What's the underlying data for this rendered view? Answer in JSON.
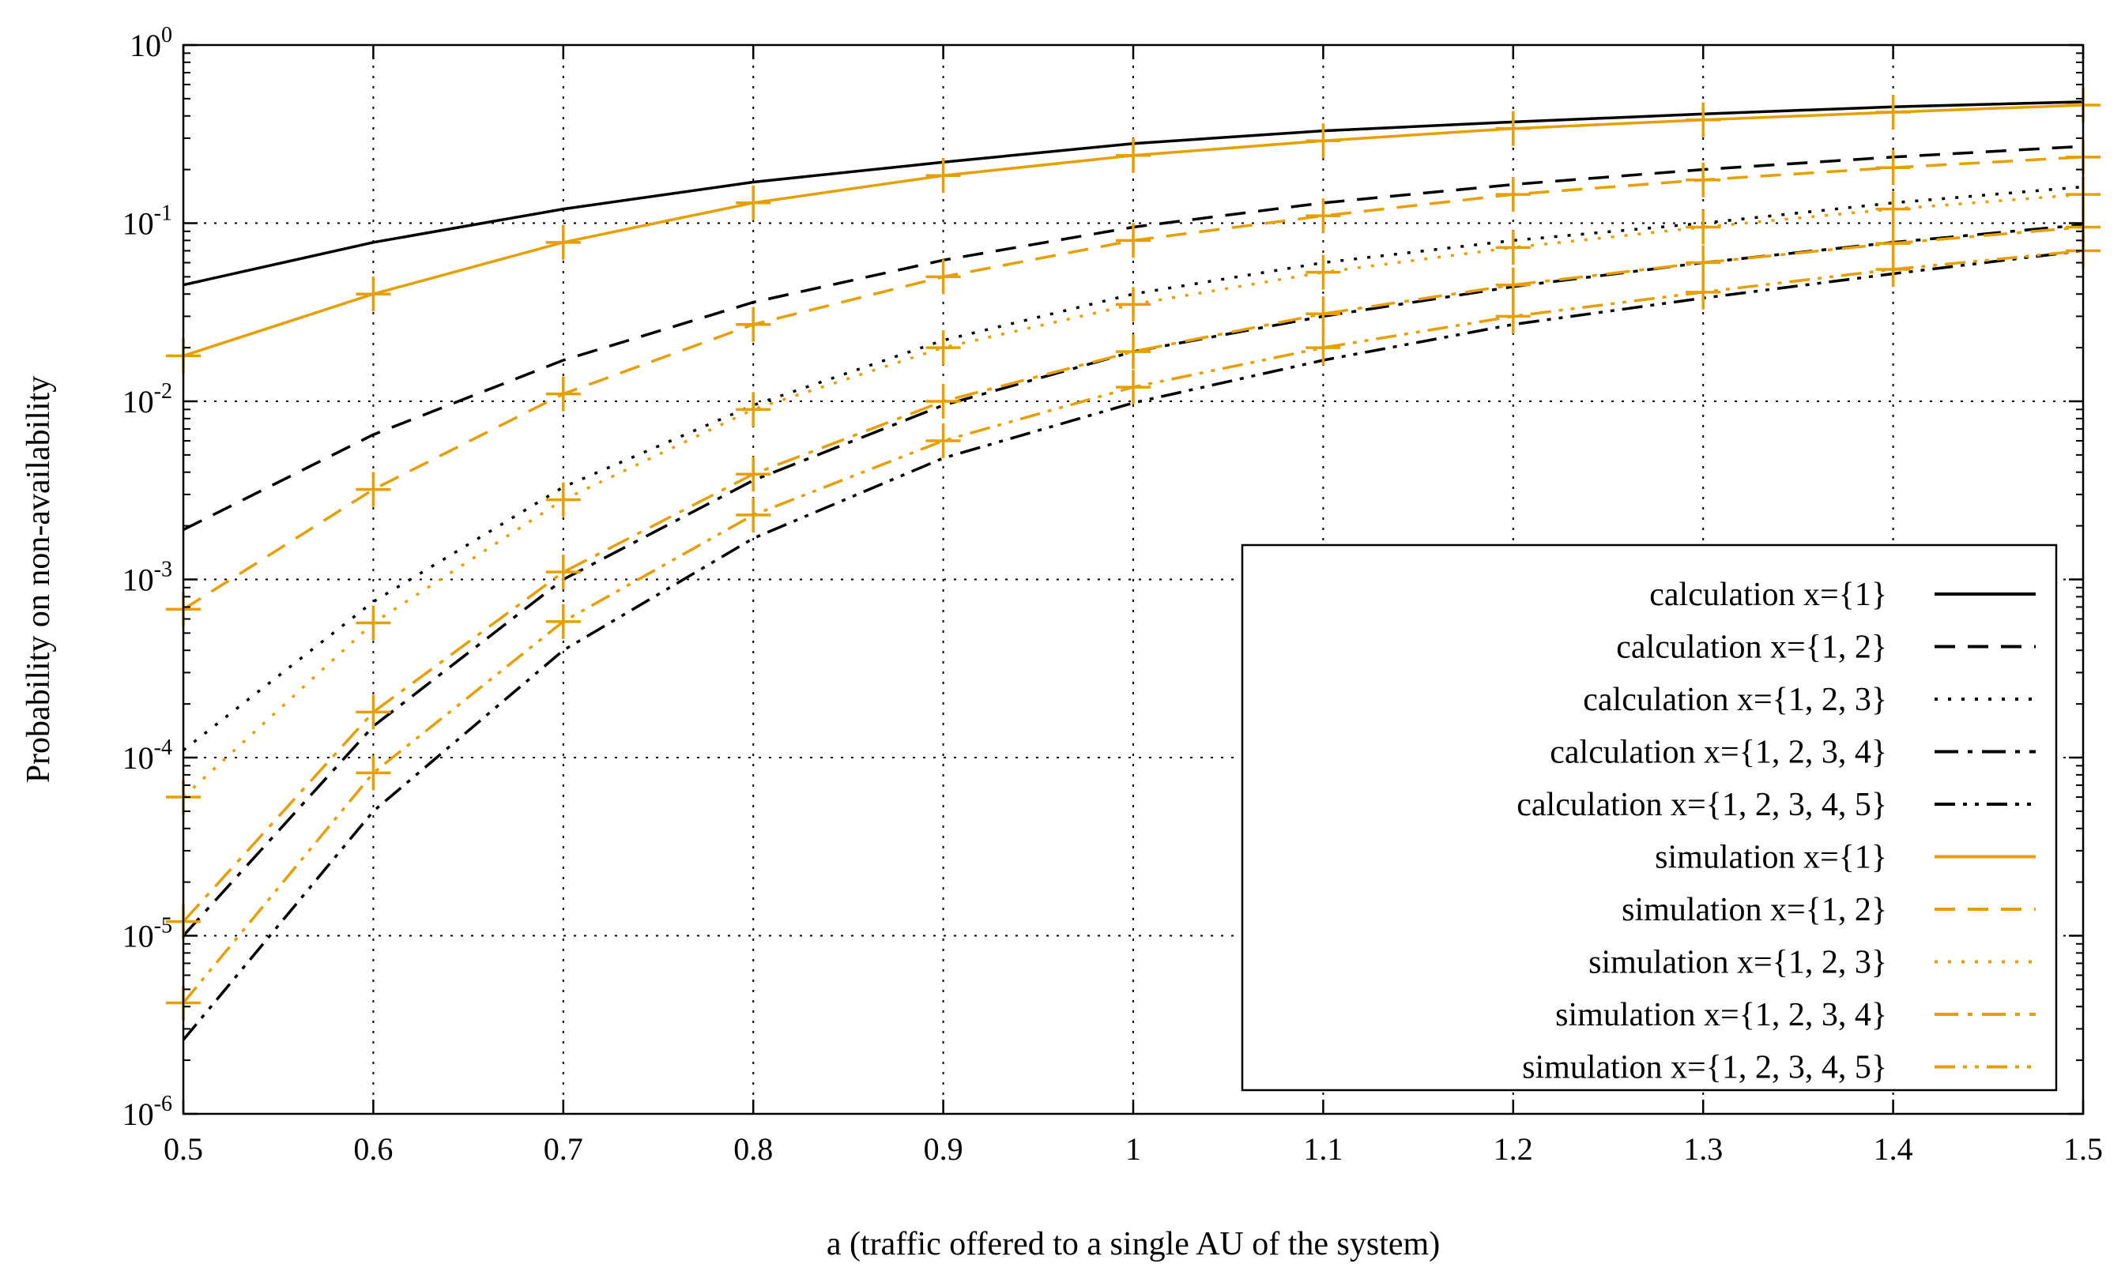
{
  "chart_data": {
    "type": "line",
    "title": "",
    "xlabel": "a (traffic offered to a single AU of the system)",
    "ylabel": "Probability on non-availability",
    "xlim": [
      0.5,
      1.5
    ],
    "ylim": [
      1e-06,
      1
    ],
    "yscale": "log",
    "grid": true,
    "legend_position": "bottom-right",
    "x": [
      0.5,
      0.6,
      0.7,
      0.8,
      0.9,
      1.0,
      1.1,
      1.2,
      1.3,
      1.4,
      1.5
    ],
    "x_tick_labels": [
      "0.5",
      "0.6",
      "0.7",
      "0.8",
      "0.9",
      "1",
      "1.1",
      "1.2",
      "1.3",
      "1.4",
      "1.5"
    ],
    "y_tick_labels": [
      {
        "base": "10",
        "exp": "-6"
      },
      {
        "base": "10",
        "exp": "-5"
      },
      {
        "base": "10",
        "exp": "-4"
      },
      {
        "base": "10",
        "exp": "-3"
      },
      {
        "base": "10",
        "exp": "-2"
      },
      {
        "base": "10",
        "exp": "-1"
      },
      {
        "base": "10",
        "exp": "0"
      }
    ],
    "colors": {
      "calculation": "#000000",
      "simulation": "#E69F00"
    },
    "series": [
      {
        "name": "calculation x={1}",
        "kind": "calculation",
        "dash": "solid",
        "values": [
          0.045,
          0.078,
          0.12,
          0.17,
          0.22,
          0.28,
          0.33,
          0.37,
          0.41,
          0.45,
          0.48
        ]
      },
      {
        "name": "calculation x={1, 2}",
        "kind": "calculation",
        "dash": "dash",
        "values": [
          0.0019,
          0.0065,
          0.017,
          0.036,
          0.062,
          0.095,
          0.13,
          0.165,
          0.2,
          0.235,
          0.27
        ]
      },
      {
        "name": "calculation x={1, 2, 3}",
        "kind": "calculation",
        "dash": "dot",
        "values": [
          0.00011,
          0.00075,
          0.0033,
          0.0095,
          0.022,
          0.04,
          0.06,
          0.08,
          0.1,
          0.13,
          0.16
        ]
      },
      {
        "name": "calculation x={1, 2, 3, 4}",
        "kind": "calculation",
        "dash": "dashdot",
        "values": [
          1e-05,
          0.00015,
          0.001,
          0.0036,
          0.0095,
          0.019,
          0.03,
          0.044,
          0.06,
          0.078,
          0.098
        ]
      },
      {
        "name": "calculation x={1, 2, 3, 4, 5}",
        "kind": "calculation",
        "dash": "dashdotdot",
        "values": [
          2.6e-06,
          5e-05,
          0.0004,
          0.0017,
          0.0048,
          0.0098,
          0.017,
          0.027,
          0.038,
          0.052,
          0.07
        ]
      },
      {
        "name": "simulation x={1}",
        "kind": "simulation",
        "dash": "solid",
        "values": [
          0.018,
          0.04,
          0.078,
          0.13,
          0.185,
          0.24,
          0.29,
          0.34,
          0.38,
          0.42,
          0.46
        ]
      },
      {
        "name": "simulation x={1, 2}",
        "kind": "simulation",
        "dash": "dash",
        "values": [
          0.00068,
          0.0032,
          0.011,
          0.027,
          0.05,
          0.08,
          0.11,
          0.145,
          0.175,
          0.205,
          0.235
        ]
      },
      {
        "name": "simulation x={1, 2, 3}",
        "kind": "simulation",
        "dash": "dot",
        "values": [
          6e-05,
          0.00057,
          0.0028,
          0.009,
          0.02,
          0.035,
          0.053,
          0.073,
          0.095,
          0.12,
          0.145
        ]
      },
      {
        "name": "simulation x={1, 2, 3, 4}",
        "kind": "simulation",
        "dash": "dashdot",
        "values": [
          1.2e-05,
          0.00018,
          0.0011,
          0.0039,
          0.01,
          0.019,
          0.031,
          0.045,
          0.06,
          0.077,
          0.095
        ]
      },
      {
        "name": "simulation x={1, 2, 3, 4, 5}",
        "kind": "simulation",
        "dash": "dashdotdot",
        "values": [
          4.2e-06,
          8.2e-05,
          0.00058,
          0.0023,
          0.006,
          0.012,
          0.02,
          0.03,
          0.041,
          0.055,
          0.07
        ]
      }
    ]
  }
}
